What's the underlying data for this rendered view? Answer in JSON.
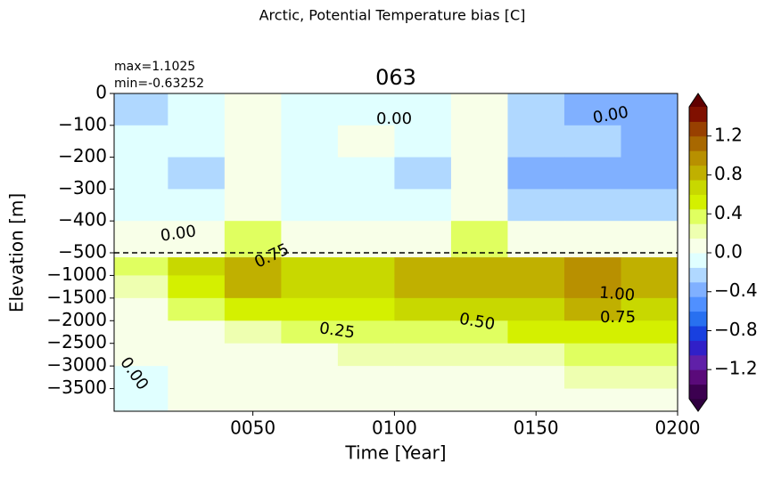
{
  "chart_data": {
    "type": "contour",
    "title": "Arctic, Potential Temperature bias [C]",
    "subtitle": "063",
    "annotations": [
      "max=1.1025",
      "min=-0.63252"
    ],
    "xlabel": "Time [Year]",
    "ylabel": "Elevation [m]",
    "x": [
      10,
      30,
      50,
      70,
      90,
      110,
      130,
      150,
      170,
      190
    ],
    "y": [
      -50,
      -150,
      -250,
      -350,
      -450,
      -750,
      -1250,
      -1750,
      -2250,
      -2750,
      -3250,
      -3750
    ],
    "z": [
      [
        -0.2,
        -0.1,
        0.05,
        -0.1,
        -0.1,
        -0.15,
        0.0,
        -0.2,
        -0.3,
        -0.4
      ],
      [
        -0.1,
        -0.15,
        0.1,
        -0.1,
        0.0,
        -0.1,
        0.05,
        -0.2,
        -0.2,
        -0.3
      ],
      [
        -0.1,
        -0.2,
        0.05,
        -0.15,
        -0.1,
        -0.2,
        0.0,
        -0.3,
        -0.3,
        -0.3
      ],
      [
        -0.1,
        -0.15,
        0.1,
        -0.1,
        -0.1,
        -0.15,
        0.05,
        -0.2,
        -0.2,
        -0.2
      ],
      [
        0.05,
        0.1,
        0.3,
        0.1,
        0.1,
        0.1,
        0.3,
        0.1,
        0.1,
        0.1
      ],
      [
        0.3,
        0.6,
        0.9,
        0.6,
        0.7,
        0.8,
        0.9,
        0.8,
        1.0,
        0.9
      ],
      [
        0.2,
        0.5,
        0.8,
        0.6,
        0.7,
        0.8,
        0.8,
        0.8,
        1.0,
        0.9
      ],
      [
        0.1,
        0.35,
        0.45,
        0.5,
        0.55,
        0.6,
        0.6,
        0.7,
        0.75,
        0.7
      ],
      [
        0.05,
        0.15,
        0.25,
        0.3,
        0.35,
        0.4,
        0.4,
        0.45,
        0.5,
        0.5
      ],
      [
        0.0,
        0.05,
        0.1,
        0.15,
        0.2,
        0.2,
        0.25,
        0.25,
        0.3,
        0.3
      ],
      [
        -0.02,
        0.02,
        0.05,
        0.05,
        0.1,
        0.1,
        0.15,
        0.15,
        0.2,
        0.2
      ],
      [
        -0.02,
        0.0,
        0.02,
        0.05,
        0.05,
        0.05,
        0.1,
        0.1,
        0.1,
        0.15
      ]
    ],
    "contour_labels": [
      "0.00",
      "0.00",
      "0.00",
      "0.75",
      "1.00",
      "0.50",
      "0.75",
      "0.25",
      "0.00"
    ],
    "xlim": [
      1,
      200
    ],
    "xticks": [
      {
        "value": 50,
        "label": "0050"
      },
      {
        "value": 100,
        "label": "0100"
      },
      {
        "value": 150,
        "label": "0150"
      },
      {
        "value": 200,
        "label": "0200"
      }
    ],
    "ylim": [
      -4000,
      0
    ],
    "ybreak": -500,
    "yticks": [
      0,
      {
        "value": -100,
        "label": "−100"
      },
      {
        "value": -200,
        "label": "−200"
      },
      {
        "value": -300,
        "label": "−300"
      },
      {
        "value": -400,
        "label": "−400"
      },
      {
        "value": -500,
        "label": "−500"
      },
      {
        "value": -1000,
        "label": "−1000"
      },
      {
        "value": -1500,
        "label": "−1500"
      },
      {
        "value": -2000,
        "label": "−2000"
      },
      {
        "value": -2500,
        "label": "−2500"
      },
      {
        "value": -3000,
        "label": "−3000"
      },
      {
        "value": -3500,
        "label": "−3500"
      }
    ],
    "clim": [
      -1.5,
      1.5
    ],
    "cticks": [
      {
        "value": -1.2,
        "label": "−1.2"
      },
      {
        "value": -0.8,
        "label": "−0.8"
      },
      {
        "value": -0.4,
        "label": "−0.4"
      },
      {
        "value": 0,
        "label": "0.0"
      },
      {
        "value": 0.4,
        "label": "0.4"
      },
      {
        "value": 0.8,
        "label": "0.8"
      },
      {
        "value": 1.2,
        "label": "1.2"
      }
    ],
    "colormap": [
      "#3c0050",
      "#5a0a7a",
      "#6020a8",
      "#3020c8",
      "#1840e0",
      "#2870f0",
      "#5090ff",
      "#80b0ff",
      "#b0d8ff",
      "#e0ffff",
      "#f8ffe8",
      "#eeffb0",
      "#e0ff60",
      "#d4f000",
      "#c8d800",
      "#c0b000",
      "#b89000",
      "#a86800",
      "#984000",
      "#801000"
    ],
    "under_color": "#300040",
    "over_color": "#600000"
  }
}
